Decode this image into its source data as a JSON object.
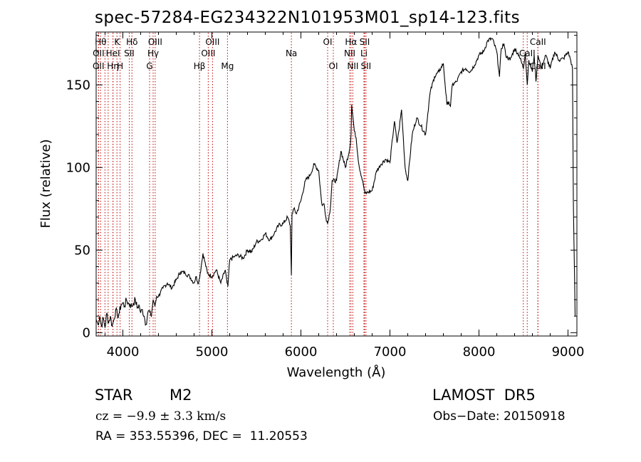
{
  "chart_data": {
    "type": "line",
    "title": "spec-57284-EG234322N101953M01_sp14-123.fits",
    "xlabel": "Wavelength (Å)",
    "ylabel": "Flux (relative)",
    "xlim": [
      3700,
      9100
    ],
    "ylim": [
      -2,
      182
    ],
    "x_ticks": [
      4000,
      5000,
      6000,
      7000,
      8000,
      9000
    ],
    "y_ticks": [
      0,
      50,
      100,
      150
    ],
    "grid": false,
    "series": [
      {
        "x": [
          3700,
          3720,
          3740,
          3760,
          3780,
          3800,
          3820,
          3840,
          3860,
          3880,
          3900,
          3920,
          3940,
          3960,
          3980,
          4000,
          4020,
          4040,
          4060,
          4080,
          4100,
          4120,
          4140,
          4160,
          4180,
          4200,
          4220,
          4240,
          4260,
          4280,
          4300,
          4320,
          4340,
          4360,
          4380,
          4400,
          4450,
          4500,
          4550,
          4600,
          4650,
          4700,
          4750,
          4800,
          4820,
          4850,
          4880,
          4900,
          4950,
          5000,
          5050,
          5100,
          5150,
          5170,
          5180,
          5200,
          5250,
          5300,
          5350,
          5400,
          5450,
          5500,
          5550,
          5600,
          5650,
          5700,
          5750,
          5800,
          5850,
          5880,
          5893,
          5900,
          5920,
          5950,
          6000,
          6050,
          6100,
          6150,
          6200,
          6230,
          6240,
          6260,
          6280,
          6300,
          6330,
          6350,
          6400,
          6450,
          6500,
          6550,
          6563,
          6570,
          6600,
          6620,
          6650,
          6700,
          6720,
          6750,
          6800,
          6850,
          6900,
          6950,
          7000,
          7050,
          7080,
          7100,
          7130,
          7150,
          7170,
          7200,
          7250,
          7300,
          7350,
          7400,
          7450,
          7500,
          7550,
          7600,
          7620,
          7640,
          7660,
          7680,
          7700,
          7750,
          7800,
          7850,
          7900,
          7950,
          8000,
          8050,
          8100,
          8150,
          8200,
          8230,
          8250,
          8280,
          8300,
          8350,
          8400,
          8450,
          8500,
          8520,
          8542,
          8560,
          8600,
          8620,
          8640,
          8662,
          8680,
          8700,
          8750,
          8800,
          8850,
          8900,
          8950,
          9000,
          9030,
          9050,
          9060,
          9080
        ],
        "y": [
          8,
          5,
          10,
          4,
          9,
          3,
          12,
          6,
          10,
          4,
          8,
          14,
          10,
          12,
          17,
          18,
          16,
          20,
          18,
          17,
          16,
          18,
          20,
          15,
          17,
          12,
          14,
          10,
          5,
          12,
          13,
          10,
          20,
          16,
          22,
          22,
          27,
          30,
          27,
          32,
          37,
          36,
          34,
          30,
          34,
          30,
          40,
          48,
          36,
          34,
          38,
          30,
          38,
          30,
          28,
          44,
          46,
          47,
          45,
          50,
          49,
          55,
          56,
          60,
          56,
          60,
          65,
          66,
          70,
          65,
          35,
          72,
          75,
          72,
          80,
          92,
          95,
          102,
          98,
          80,
          77,
          78,
          70,
          66,
          75,
          92,
          92,
          110,
          100,
          112,
          120,
          138,
          122,
          118,
          102,
          90,
          84,
          85,
          86,
          98,
          102,
          105,
          103,
          128,
          115,
          122,
          135,
          118,
          100,
          92,
          120,
          130,
          125,
          120,
          145,
          155,
          158,
          163,
          150,
          138,
          140,
          137,
          150,
          152,
          158,
          160,
          158,
          162,
          168,
          170,
          177,
          178,
          170,
          155,
          172,
          175,
          168,
          165,
          172,
          168,
          160,
          170,
          150,
          165,
          158,
          168,
          152,
          168,
          165,
          160,
          168,
          160,
          170,
          165,
          166,
          170,
          165,
          160,
          80,
          10
        ]
      }
    ],
    "lines": [
      {
        "x": 3750,
        "label": "Hθ",
        "row": 1
      },
      {
        "x": 3727,
        "label": "OII",
        "row": 2
      },
      {
        "x": 3726,
        "label": "OII",
        "row": 3
      },
      {
        "x": 3799,
        "label": "",
        "row": 0
      },
      {
        "x": 3835,
        "label": "",
        "row": 0
      },
      {
        "x": 3889,
        "label": "HeI",
        "row": 2
      },
      {
        "x": 3889,
        "label": "Hη",
        "row": 3
      },
      {
        "x": 3934,
        "label": "K",
        "row": 1
      },
      {
        "x": 3969,
        "label": "H",
        "row": 3
      },
      {
        "x": 4072,
        "label": "SII",
        "row": 2
      },
      {
        "x": 4102,
        "label": "Hδ",
        "row": 1
      },
      {
        "x": 4300,
        "label": "G",
        "row": 3
      },
      {
        "x": 4340,
        "label": "Hγ",
        "row": 2
      },
      {
        "x": 4363,
        "label": "OIII",
        "row": 1
      },
      {
        "x": 4861,
        "label": "Hβ",
        "row": 3
      },
      {
        "x": 4959,
        "label": "OIII",
        "row": 2
      },
      {
        "x": 5007,
        "label": "OIII",
        "row": 1
      },
      {
        "x": 5175,
        "label": "Mg",
        "row": 3
      },
      {
        "x": 5893,
        "label": "Na",
        "row": 2
      },
      {
        "x": 6300,
        "label": "OI",
        "row": 1
      },
      {
        "x": 6364,
        "label": "OI",
        "row": 3
      },
      {
        "x": 6548,
        "label": "NII",
        "row": 2
      },
      {
        "x": 6563,
        "label": "Hα",
        "row": 1
      },
      {
        "x": 6583,
        "label": "NII",
        "row": 3
      },
      {
        "x": 6708,
        "label": "Li",
        "row": 2
      },
      {
        "x": 6716,
        "label": "SII",
        "row": 1
      },
      {
        "x": 6731,
        "label": "SII",
        "row": 3
      },
      {
        "x": 8498,
        "label": "",
        "row": 0
      },
      {
        "x": 8542,
        "label": "CaII",
        "row": 2
      },
      {
        "x": 8662,
        "label": "CaII",
        "row": 1
      },
      {
        "x": 8662,
        "label": "CaII",
        "row": 3
      }
    ],
    "line_color": "#c00000"
  },
  "info": {
    "obj_class": "STAR",
    "subclass": "M2",
    "survey": "LAMOST  DR5",
    "cz": "cz = −9.9 ± 3.3 km/s",
    "obs_date": "Obs−Date: 20150918",
    "coords": "RA = 353.55396, DEC =  11.20553"
  }
}
